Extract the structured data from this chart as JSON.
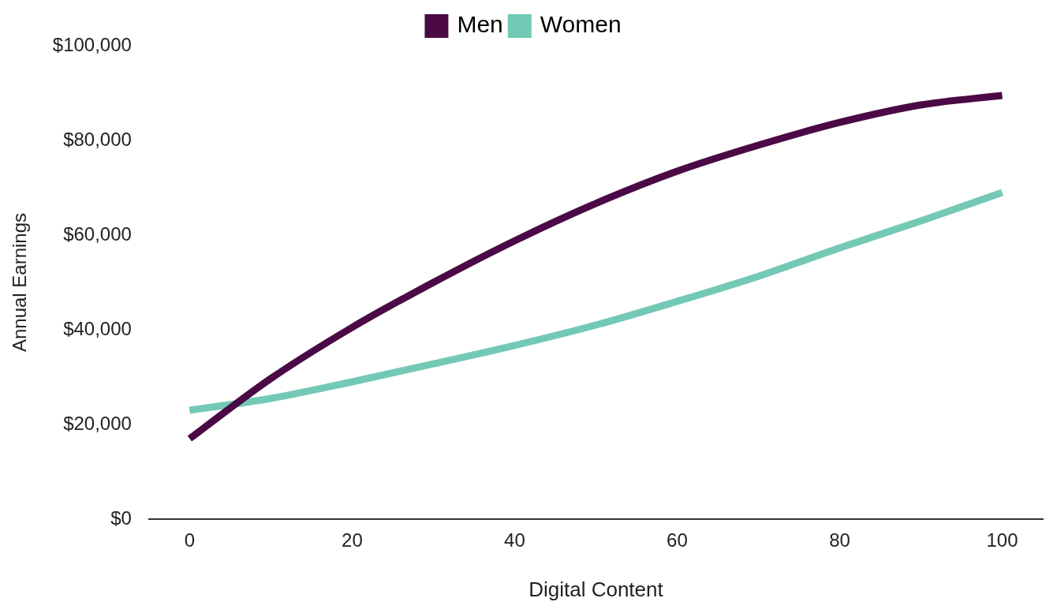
{
  "chart_data": {
    "type": "line",
    "xlabel": "Digital Content",
    "ylabel": "Annual Earnings",
    "x": [
      0,
      10,
      20,
      30,
      40,
      50,
      60,
      70,
      80,
      90,
      100
    ],
    "series": [
      {
        "name": "Men",
        "color": "#4b0a45",
        "values": [
          17000,
          29700,
          40500,
          50000,
          58800,
          66700,
          73500,
          79000,
          83800,
          87500,
          89500
        ]
      },
      {
        "name": "Women",
        "color": "#73c9b6",
        "values": [
          23000,
          25500,
          29000,
          32800,
          36700,
          41000,
          46000,
          51300,
          57300,
          63000,
          69000
        ]
      }
    ],
    "xlim": [
      -5,
      105
    ],
    "xticks": [
      0,
      20,
      40,
      60,
      80,
      100
    ],
    "ylim": [
      0,
      100000
    ],
    "yticks": [
      {
        "value": 0,
        "label": "$0"
      },
      {
        "value": 20000,
        "label": "$20,000"
      },
      {
        "value": 40000,
        "label": "$40,000"
      },
      {
        "value": 60000,
        "label": "$60,000"
      },
      {
        "value": 80000,
        "label": "$80,000"
      },
      {
        "value": 100000,
        "label": "$100,000"
      }
    ],
    "grid": false,
    "legend": "top",
    "marker": "none",
    "line_style": "solid"
  }
}
